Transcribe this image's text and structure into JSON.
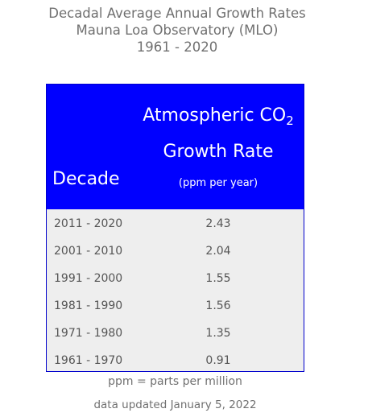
{
  "title": {
    "line1": "Decadal Average Annual Growth Rates",
    "line2": "Mauna Loa Observatory (MLO)",
    "line3": "1961 - 2020"
  },
  "table": {
    "header": {
      "decade": "Decade",
      "co2_label": "Atmospheric CO",
      "co2_subscript": "2",
      "rate_label": "Growth Rate",
      "unit": "(ppm per year)"
    },
    "rows": [
      {
        "decade": "2011 - 2020",
        "rate": "2.43"
      },
      {
        "decade": "2001 - 2010",
        "rate": "2.04"
      },
      {
        "decade": "1991 - 2000",
        "rate": "1.55"
      },
      {
        "decade": "1981 - 1990",
        "rate": "1.56"
      },
      {
        "decade": "1971 - 1980",
        "rate": "1.35"
      },
      {
        "decade": "1961 - 1970",
        "rate": "0.91"
      }
    ]
  },
  "footnote": "ppm = parts per million",
  "updated": "data updated January 5, 2022",
  "colors": {
    "header_bg": "#0000ff",
    "body_bg": "#eeeeee",
    "text_gray": "#707070"
  }
}
